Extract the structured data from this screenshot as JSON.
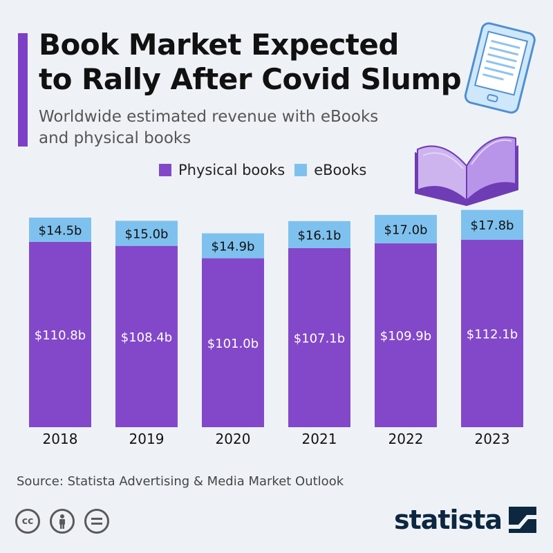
{
  "header": {
    "title_line1": "Book Market Expected",
    "title_line2": "to Rally After Covid Slump",
    "subtitle_line1": "Worldwide estimated revenue with eBooks",
    "subtitle_line2": "and physical books"
  },
  "legend": {
    "physical_label": "Physical books",
    "ebooks_label": "eBooks"
  },
  "colors": {
    "physical": "#8348c9",
    "ebooks": "#7fc1ee",
    "accent": "#7e3fc7",
    "background": "#eef2f6"
  },
  "chart_data": {
    "type": "bar",
    "stacked": true,
    "categories": [
      "2018",
      "2019",
      "2020",
      "2021",
      "2022",
      "2023"
    ],
    "series": [
      {
        "name": "Physical books",
        "values": [
          110.8,
          108.4,
          101.0,
          107.1,
          109.9,
          112.1
        ],
        "labels": [
          "$110.8b",
          "$108.4b",
          "$101.0b",
          "$107.1b",
          "$109.9b",
          "$112.1b"
        ]
      },
      {
        "name": "eBooks",
        "values": [
          14.5,
          15.0,
          14.9,
          16.1,
          17.0,
          17.8
        ],
        "labels": [
          "$14.5b",
          "$15.0b",
          "$14.9b",
          "$16.1b",
          "$17.0b",
          "$17.8b"
        ]
      }
    ],
    "title": "Book Market Expected to Rally After Covid Slump",
    "subtitle": "Worldwide estimated revenue with eBooks and physical books",
    "legend_position": "top",
    "grid": false,
    "ylim": [
      0,
      130
    ]
  },
  "footer": {
    "source": "Source: Statista Advertising & Media Market Outlook",
    "brand": "statista",
    "license_icons": [
      "cc-icon",
      "attribution-icon",
      "no-derivatives-icon"
    ]
  }
}
